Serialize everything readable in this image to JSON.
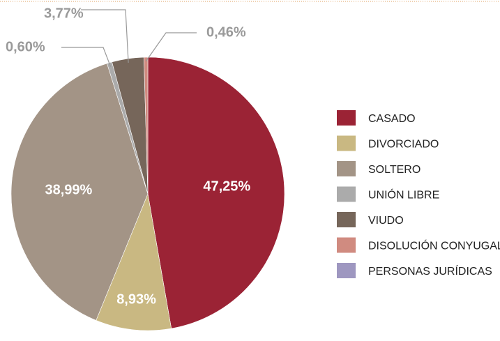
{
  "chart_data": {
    "type": "pie",
    "categories": [
      "CASADO",
      "DIVORCIADO",
      "SOLTERO",
      "UNIÓN LIBRE",
      "VIUDO",
      "DISOLUCIÓN CONYUGAL",
      "PERSONAS JURÍDICAS"
    ],
    "values": [
      47.25,
      8.93,
      38.99,
      0.6,
      3.77,
      0.46,
      0
    ],
    "value_labels": [
      "47,25%",
      "8,93%",
      "38,99%",
      "0,60%",
      "3,77%",
      "0,46%",
      null
    ],
    "colors": [
      "#9b2335",
      "#c9b882",
      "#a39486",
      "#ababab",
      "#76665a",
      "#d08b80",
      "#9e97c0"
    ]
  }
}
